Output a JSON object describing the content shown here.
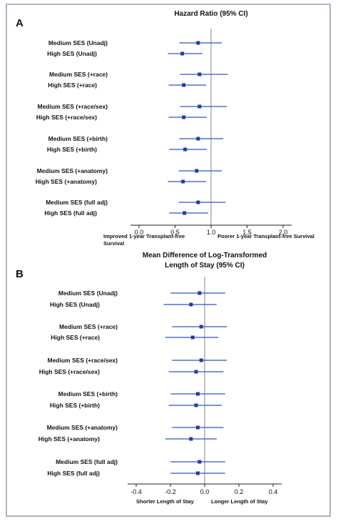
{
  "chart_data": [
    {
      "panel": "A",
      "type": "forest",
      "title": "Hazard Ratio (95% CI)",
      "xlim": [
        0.0,
        2.0
      ],
      "xticks": [
        "0.0",
        "0.5",
        "1.0",
        "1.5",
        "2.0"
      ],
      "reference_line": 1.0,
      "direction_labels": {
        "left": [
          "Improved 1-year Transplant-free",
          "Survival"
        ],
        "right": "Poorer 1-year Transplant-free Survival"
      },
      "rows": [
        {
          "label": "Medium SES (Unadj)",
          "estimate": 0.82,
          "lower": 0.56,
          "upper": 1.15
        },
        {
          "label": "High SES (Unadj)",
          "estimate": 0.6,
          "lower": 0.4,
          "upper": 0.88
        },
        {
          "label": "Medium SES (+race)",
          "estimate": 0.84,
          "lower": 0.57,
          "upper": 1.23
        },
        {
          "label": "High SES (+race)",
          "estimate": 0.62,
          "lower": 0.41,
          "upper": 0.93
        },
        {
          "label": "Medium SES (+race/sex)",
          "estimate": 0.84,
          "lower": 0.57,
          "upper": 1.22
        },
        {
          "label": "High SES (+race/sex)",
          "estimate": 0.62,
          "lower": 0.41,
          "upper": 0.94
        },
        {
          "label": "Medium SES (+birth)",
          "estimate": 0.82,
          "lower": 0.56,
          "upper": 1.17
        },
        {
          "label": "High SES (+birth)",
          "estimate": 0.64,
          "lower": 0.42,
          "upper": 0.94
        },
        {
          "label": "Medium SES (+anatomy)",
          "estimate": 0.8,
          "lower": 0.55,
          "upper": 1.15
        },
        {
          "label": "High SES (+anatomy)",
          "estimate": 0.61,
          "lower": 0.4,
          "upper": 0.93
        },
        {
          "label": "Medium SES (full adj)",
          "estimate": 0.82,
          "lower": 0.55,
          "upper": 1.2
        },
        {
          "label": "High SES (full adj)",
          "estimate": 0.63,
          "lower": 0.42,
          "upper": 0.96
        }
      ]
    },
    {
      "panel": "B",
      "type": "forest",
      "title": [
        "Mean Difference of Log-Transformed",
        "Length of Stay (95% CI)"
      ],
      "xlim": [
        -0.4,
        0.4
      ],
      "xticks": [
        "-0.4",
        "-0.2",
        "0.0",
        "0.2",
        "0.4"
      ],
      "reference_line": 0.0,
      "direction_labels": {
        "left": "Shorter Length of Stay",
        "right": "Longer Length of Stay"
      },
      "rows": [
        {
          "label": "Medium SES (Unadj)",
          "estimate": -0.03,
          "lower": -0.2,
          "upper": 0.12
        },
        {
          "label": "High SES (Unadj)",
          "estimate": -0.08,
          "lower": -0.24,
          "upper": 0.07
        },
        {
          "label": "Medium SES (+race)",
          "estimate": -0.02,
          "lower": -0.19,
          "upper": 0.13
        },
        {
          "label": "High SES (+race)",
          "estimate": -0.07,
          "lower": -0.23,
          "upper": 0.08
        },
        {
          "label": "Medium SES (+race/sex)",
          "estimate": -0.02,
          "lower": -0.19,
          "upper": 0.13
        },
        {
          "label": "High SES (+race/sex)",
          "estimate": -0.05,
          "lower": -0.21,
          "upper": 0.11
        },
        {
          "label": "Medium SES (+birth)",
          "estimate": -0.04,
          "lower": -0.2,
          "upper": 0.12
        },
        {
          "label": "High SES (+birth)",
          "estimate": -0.05,
          "lower": -0.21,
          "upper": 0.1
        },
        {
          "label": "Medium SES (+anatomy)",
          "estimate": -0.04,
          "lower": -0.19,
          "upper": 0.11
        },
        {
          "label": "High SES (+anatomy)",
          "estimate": -0.08,
          "lower": -0.23,
          "upper": 0.07
        },
        {
          "label": "Medium SES (full adj)",
          "estimate": -0.03,
          "lower": -0.2,
          "upper": 0.12
        },
        {
          "label": "High SES (full adj)",
          "estimate": -0.04,
          "lower": -0.2,
          "upper": 0.12
        }
      ]
    }
  ],
  "colors": {
    "whisker": "#2c55c9",
    "point": "#1f3e9c",
    "axis": "#222222",
    "reference": "#999999",
    "frame": "#a9b6c4"
  }
}
